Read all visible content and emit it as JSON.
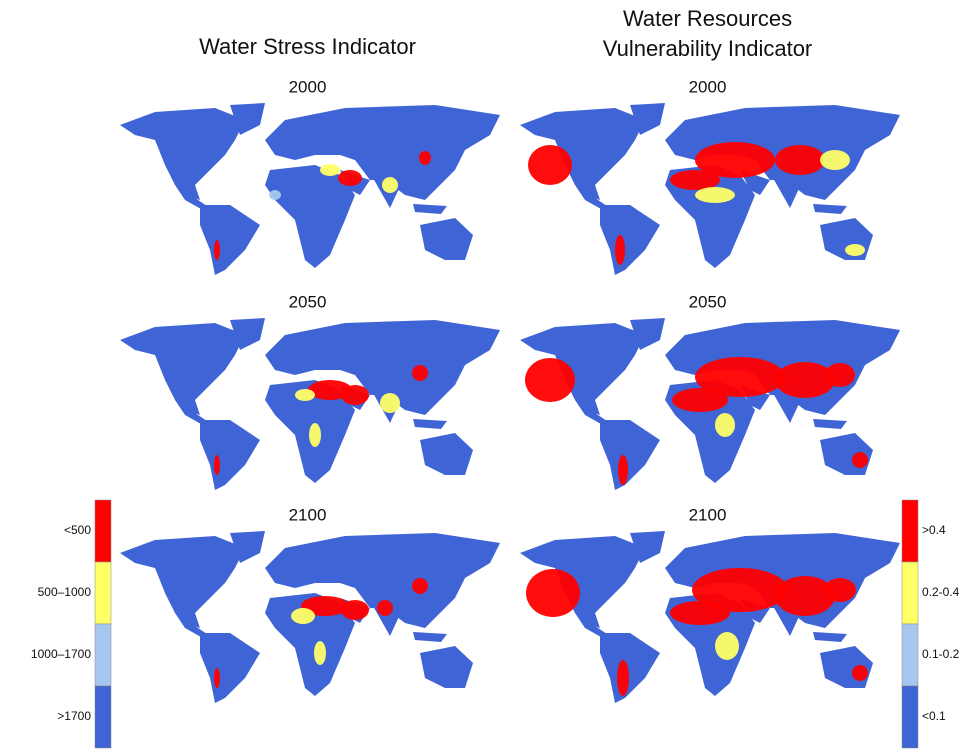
{
  "columns": [
    {
      "title": [
        "Water Stress Indicator"
      ],
      "panels": [
        {
          "year": "2000"
        },
        {
          "year": "2050"
        },
        {
          "year": "2100"
        }
      ]
    },
    {
      "title": [
        "Water Resources",
        "Vulnerability Indicator"
      ],
      "panels": [
        {
          "year": "2000"
        },
        {
          "year": "2050"
        },
        {
          "year": "2100"
        }
      ]
    }
  ],
  "legends": [
    {
      "items": [
        {
          "label": "<500",
          "color": "#ff0000"
        },
        {
          "label": "500–1000",
          "color": "#ffff66"
        },
        {
          "label": "1000–1700",
          "color": "#a6c8f0"
        },
        {
          "label": ">1700",
          "color": "#3f64d6"
        }
      ]
    },
    {
      "items": [
        {
          "label": ">0.4",
          "color": "#ff0000"
        },
        {
          "label": "0.2-0.4",
          "color": "#ffff66"
        },
        {
          "label": "0.1-0.2",
          "color": "#a6c8f0"
        },
        {
          "label": "<0.1",
          "color": "#3f64d6"
        }
      ]
    }
  ]
}
